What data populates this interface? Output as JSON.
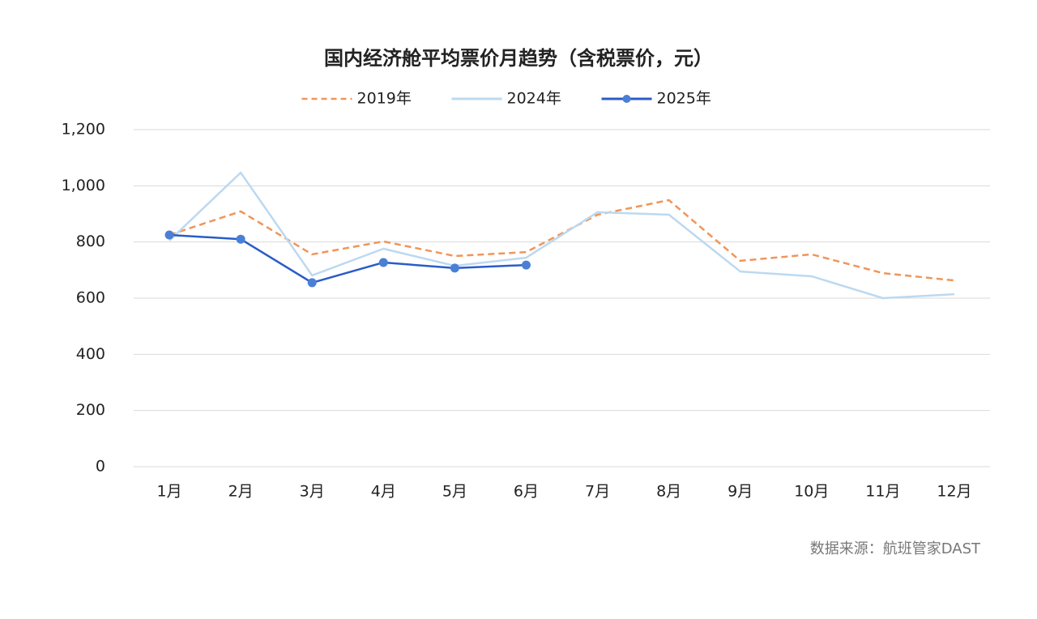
{
  "chart_data": {
    "type": "line",
    "title": "国内经济舱平均票价月趋势（含税票价，元）",
    "source": "数据来源：航班管家DAST",
    "categories": [
      "1月",
      "2月",
      "3月",
      "4月",
      "5月",
      "6月",
      "7月",
      "8月",
      "9月",
      "10月",
      "11月",
      "12月"
    ],
    "series": [
      {
        "name": "2019年",
        "color": "#f0955a",
        "dashed": true,
        "markers": false,
        "values": [
          825,
          909,
          756,
          802,
          750,
          764,
          897,
          949,
          733,
          756,
          689,
          663
        ]
      },
      {
        "name": "2024年",
        "color": "#bcd9f0",
        "dashed": false,
        "markers": false,
        "values": [
          805,
          1047,
          681,
          776,
          715,
          744,
          906,
          897,
          695,
          678,
          600,
          614
        ]
      },
      {
        "name": "2025年",
        "color": "#2a5cc8",
        "dashed": false,
        "markers": true,
        "values": [
          825,
          810,
          655,
          727,
          707,
          718,
          null,
          null,
          null,
          null,
          null,
          null
        ]
      }
    ],
    "ylim": [
      0,
      1200
    ],
    "yticks": [
      0,
      200,
      400,
      600,
      800,
      {
        "value": 1000,
        "label": "1,000"
      },
      {
        "value": 1200,
        "label": "1,200"
      }
    ],
    "grid": true,
    "legend": "top"
  }
}
